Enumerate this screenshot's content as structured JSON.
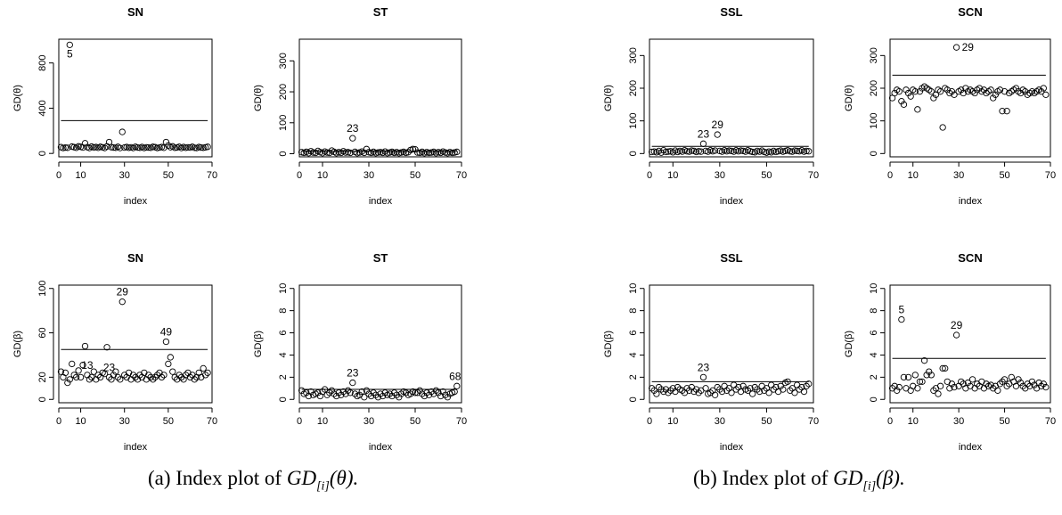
{
  "captions": [
    {
      "prefix": "(a) Index plot of",
      "symbol": "GD",
      "sub": "[i]",
      "arg": "(θ)."
    },
    {
      "prefix": "(b) Index plot of",
      "symbol": "GD",
      "sub": "[i]",
      "arg": "(β)."
    }
  ],
  "chart_data": [
    {
      "type": "scatter",
      "panel": "a",
      "title": "SN",
      "xlabel": "index",
      "ylabel": "GD(θ)",
      "xlim": [
        0,
        70
      ],
      "ylim": [
        -30,
        1010
      ],
      "xticks": [
        0,
        10,
        30,
        50,
        70
      ],
      "yticks": [
        0,
        400,
        800
      ],
      "x": [
        1,
        2,
        3,
        4,
        5,
        6,
        7,
        8,
        9,
        10,
        11,
        12,
        13,
        14,
        15,
        16,
        17,
        18,
        19,
        20,
        21,
        22,
        23,
        24,
        25,
        26,
        27,
        28,
        29,
        30,
        31,
        32,
        33,
        34,
        35,
        36,
        37,
        38,
        39,
        40,
        41,
        42,
        43,
        44,
        45,
        46,
        47,
        48,
        49,
        50,
        51,
        52,
        53,
        54,
        55,
        56,
        57,
        58,
        59,
        60,
        61,
        62,
        63,
        64,
        65,
        66,
        67,
        68
      ],
      "y": [
        55,
        48,
        52,
        50,
        960,
        60,
        55,
        50,
        62,
        58,
        52,
        90,
        55,
        48,
        60,
        52,
        56,
        50,
        58,
        54,
        48,
        62,
        100,
        55,
        52,
        50,
        58,
        48,
        190,
        52,
        56,
        50,
        54,
        48,
        58,
        52,
        50,
        56,
        48,
        54,
        52,
        50,
        58,
        55,
        48,
        52,
        56,
        50,
        100,
        70,
        55,
        62,
        50,
        52,
        58,
        48,
        56,
        50,
        54,
        52,
        58,
        50,
        48,
        56,
        52,
        50,
        54,
        58
      ],
      "hline": 290,
      "labels": [
        {
          "index": 5,
          "text": "5"
        }
      ]
    },
    {
      "type": "scatter",
      "panel": "a",
      "title": "ST",
      "xlabel": "index",
      "ylabel": "GD(θ)",
      "xlim": [
        0,
        70
      ],
      "ylim": [
        -10,
        370
      ],
      "xticks": [
        0,
        10,
        30,
        50,
        70
      ],
      "yticks": [
        0,
        100,
        200,
        300
      ],
      "x": [
        1,
        2,
        3,
        4,
        5,
        6,
        7,
        8,
        9,
        10,
        11,
        12,
        13,
        14,
        15,
        16,
        17,
        18,
        19,
        20,
        21,
        22,
        23,
        24,
        25,
        26,
        27,
        28,
        29,
        30,
        31,
        32,
        33,
        34,
        35,
        36,
        37,
        38,
        39,
        40,
        41,
        42,
        43,
        44,
        45,
        46,
        47,
        48,
        49,
        50,
        51,
        52,
        53,
        54,
        55,
        56,
        57,
        58,
        59,
        60,
        61,
        62,
        63,
        64,
        65,
        66,
        67,
        68
      ],
      "y": [
        5,
        3,
        6,
        2,
        8,
        4,
        3,
        9,
        5,
        2,
        7,
        4,
        3,
        10,
        6,
        2,
        5,
        3,
        8,
        4,
        5,
        3,
        50,
        6,
        2,
        4,
        7,
        3,
        15,
        5,
        3,
        6,
        2,
        4,
        5,
        3,
        7,
        2,
        4,
        6,
        3,
        5,
        2,
        4,
        6,
        3,
        5,
        12,
        15,
        14,
        4,
        3,
        6,
        2,
        5,
        3,
        4,
        6,
        2,
        5,
        3,
        7,
        4,
        2,
        5,
        3,
        4,
        6
      ],
      "hline": 8,
      "labels": [
        {
          "index": 23,
          "text": "23"
        }
      ]
    },
    {
      "type": "scatter",
      "panel": "a",
      "title": "SSL",
      "xlabel": "index",
      "ylabel": "GD(θ)",
      "xlim": [
        0,
        70
      ],
      "ylim": [
        -10,
        350
      ],
      "xticks": [
        0,
        10,
        30,
        50,
        70
      ],
      "yticks": [
        0,
        100,
        200,
        300
      ],
      "x": [
        1,
        2,
        3,
        4,
        5,
        6,
        7,
        8,
        9,
        10,
        11,
        12,
        13,
        14,
        15,
        16,
        17,
        18,
        19,
        20,
        21,
        22,
        23,
        24,
        25,
        26,
        27,
        28,
        29,
        30,
        31,
        32,
        33,
        34,
        35,
        36,
        37,
        38,
        39,
        40,
        41,
        42,
        43,
        44,
        45,
        46,
        47,
        48,
        49,
        50,
        51,
        52,
        53,
        54,
        55,
        56,
        57,
        58,
        59,
        60,
        61,
        62,
        63,
        64,
        65,
        66,
        67,
        68
      ],
      "y": [
        5,
        6,
        4,
        8,
        3,
        10,
        5,
        6,
        7,
        4,
        9,
        5,
        8,
        6,
        10,
        7,
        6,
        9,
        8,
        5,
        7,
        6,
        30,
        8,
        6,
        10,
        7,
        9,
        58,
        8,
        6,
        10,
        7,
        9,
        8,
        6,
        10,
        7,
        9,
        8,
        6,
        10,
        7,
        5,
        4,
        8,
        6,
        9,
        5,
        3,
        6,
        4,
        8,
        5,
        7,
        9,
        6,
        8,
        10,
        7,
        6,
        9,
        8,
        7,
        10,
        6,
        8,
        7
      ],
      "hline": 22,
      "labels": [
        {
          "index": 23,
          "text": "23"
        },
        {
          "index": 29,
          "text": "29"
        }
      ]
    },
    {
      "type": "scatter",
      "panel": "a",
      "title": "SCN",
      "xlabel": "index",
      "ylabel": "GD(θ)",
      "xlim": [
        0,
        70
      ],
      "ylim": [
        -10,
        350
      ],
      "xticks": [
        0,
        10,
        30,
        50,
        70
      ],
      "yticks": [
        0,
        100,
        200,
        300
      ],
      "x": [
        1,
        2,
        3,
        4,
        5,
        6,
        7,
        8,
        9,
        10,
        11,
        12,
        13,
        14,
        15,
        16,
        17,
        18,
        19,
        20,
        21,
        22,
        23,
        24,
        25,
        26,
        27,
        28,
        29,
        30,
        31,
        32,
        33,
        34,
        35,
        36,
        37,
        38,
        39,
        40,
        41,
        42,
        43,
        44,
        45,
        46,
        47,
        48,
        49,
        50,
        51,
        52,
        53,
        54,
        55,
        56,
        57,
        58,
        59,
        60,
        61,
        62,
        63,
        64,
        65,
        66,
        67,
        68
      ],
      "y": [
        170,
        185,
        195,
        190,
        160,
        150,
        195,
        185,
        175,
        195,
        190,
        135,
        190,
        200,
        205,
        200,
        195,
        190,
        170,
        180,
        195,
        190,
        80,
        200,
        195,
        185,
        190,
        180,
        325,
        190,
        195,
        185,
        200,
        190,
        195,
        190,
        185,
        195,
        200,
        190,
        195,
        185,
        190,
        195,
        170,
        180,
        190,
        195,
        130,
        190,
        130,
        185,
        190,
        195,
        200,
        190,
        185,
        195,
        190,
        180,
        185,
        190,
        185,
        190,
        195,
        190,
        200,
        180
      ],
      "hline": 240,
      "labels": [
        {
          "index": 29,
          "text": "29"
        }
      ]
    },
    {
      "type": "scatter",
      "panel": "b",
      "title": "SN",
      "xlabel": "index",
      "ylabel": "GD(β)",
      "xlim": [
        0,
        70
      ],
      "ylim": [
        -3,
        103
      ],
      "xticks": [
        0,
        10,
        30,
        50,
        70
      ],
      "yticks": [
        0,
        20,
        60,
        100
      ],
      "x": [
        1,
        2,
        3,
        4,
        5,
        6,
        7,
        8,
        9,
        10,
        11,
        12,
        13,
        14,
        15,
        16,
        17,
        18,
        19,
        20,
        21,
        22,
        23,
        24,
        25,
        26,
        27,
        28,
        29,
        30,
        31,
        32,
        33,
        34,
        35,
        36,
        37,
        38,
        39,
        40,
        41,
        42,
        43,
        44,
        45,
        46,
        47,
        48,
        49,
        50,
        51,
        52,
        53,
        54,
        55,
        56,
        57,
        58,
        59,
        60,
        61,
        62,
        63,
        64,
        65,
        66,
        67,
        68
      ],
      "y": [
        25,
        20,
        24,
        15,
        18,
        32,
        22,
        20,
        26,
        20,
        31,
        48,
        22,
        18,
        20,
        25,
        18,
        22,
        20,
        24,
        23,
        47,
        20,
        18,
        22,
        25,
        20,
        18,
        88,
        22,
        20,
        24,
        18,
        22,
        20,
        18,
        22,
        20,
        24,
        18,
        22,
        20,
        18,
        20,
        22,
        24,
        20,
        22,
        52,
        32,
        38,
        25,
        20,
        18,
        22,
        20,
        18,
        22,
        24,
        20,
        22,
        18,
        20,
        24,
        20,
        28,
        22,
        24
      ],
      "hline": 45,
      "labels": [
        {
          "index": 13,
          "text": "13"
        },
        {
          "index": 23,
          "text": "23"
        },
        {
          "index": 29,
          "text": "29"
        },
        {
          "index": 49,
          "text": "49"
        }
      ]
    },
    {
      "type": "scatter",
      "panel": "b",
      "title": "ST",
      "xlabel": "index",
      "ylabel": "GD(β)",
      "xlim": [
        0,
        70
      ],
      "ylim": [
        -0.3,
        10.3
      ],
      "xticks": [
        0,
        10,
        30,
        50,
        70
      ],
      "yticks": [
        0,
        2,
        4,
        6,
        8,
        10
      ],
      "x": [
        1,
        2,
        3,
        4,
        5,
        6,
        7,
        8,
        9,
        10,
        11,
        12,
        13,
        14,
        15,
        16,
        17,
        18,
        19,
        20,
        21,
        22,
        23,
        24,
        25,
        26,
        27,
        28,
        29,
        30,
        31,
        32,
        33,
        34,
        35,
        36,
        37,
        38,
        39,
        40,
        41,
        42,
        43,
        44,
        45,
        46,
        47,
        48,
        49,
        50,
        51,
        52,
        53,
        54,
        55,
        56,
        57,
        58,
        59,
        60,
        61,
        62,
        63,
        64,
        65,
        66,
        67,
        68
      ],
      "y": [
        0.8,
        0.5,
        0.6,
        0.3,
        0.7,
        0.4,
        0.5,
        0.6,
        0.3,
        0.7,
        0.9,
        0.4,
        0.6,
        0.8,
        0.5,
        0.3,
        0.6,
        0.4,
        0.7,
        0.5,
        0.8,
        0.6,
        1.5,
        0.5,
        0.3,
        0.4,
        0.7,
        0.2,
        0.8,
        0.5,
        0.3,
        0.6,
        0.4,
        0.2,
        0.5,
        0.3,
        0.6,
        0.4,
        0.5,
        0.3,
        0.6,
        0.4,
        0.2,
        0.5,
        0.7,
        0.6,
        0.4,
        0.5,
        0.7,
        0.6,
        0.6,
        0.8,
        0.5,
        0.3,
        0.6,
        0.4,
        0.7,
        0.5,
        0.8,
        0.6,
        0.3,
        0.7,
        0.4,
        0.2,
        0.5,
        0.6,
        0.7,
        1.2
      ],
      "hline": 0.9,
      "labels": [
        {
          "index": 23,
          "text": "23"
        },
        {
          "index": 68,
          "text": "68"
        }
      ]
    },
    {
      "type": "scatter",
      "panel": "b",
      "title": "SSL",
      "xlabel": "index",
      "ylabel": "GD(β)",
      "xlim": [
        0,
        70
      ],
      "ylim": [
        -0.3,
        10.3
      ],
      "xticks": [
        0,
        10,
        30,
        50,
        70
      ],
      "yticks": [
        0,
        2,
        4,
        6,
        8,
        10
      ],
      "x": [
        1,
        2,
        3,
        4,
        5,
        6,
        7,
        8,
        9,
        10,
        11,
        12,
        13,
        14,
        15,
        16,
        17,
        18,
        19,
        20,
        21,
        22,
        23,
        24,
        25,
        26,
        27,
        28,
        29,
        30,
        31,
        32,
        33,
        34,
        35,
        36,
        37,
        38,
        39,
        40,
        41,
        42,
        43,
        44,
        45,
        46,
        47,
        48,
        49,
        50,
        51,
        52,
        53,
        54,
        55,
        56,
        57,
        58,
        59,
        60,
        61,
        62,
        63,
        64,
        65,
        66,
        67,
        68
      ],
      "y": [
        1.0,
        0.8,
        0.5,
        1.1,
        0.9,
        0.7,
        0.9,
        0.6,
        0.8,
        1.0,
        0.7,
        1.1,
        0.9,
        0.8,
        0.6,
        1.0,
        0.8,
        1.1,
        0.7,
        0.9,
        0.6,
        0.8,
        2.0,
        1.0,
        0.5,
        0.6,
        0.8,
        0.4,
        1.1,
        0.9,
        0.7,
        1.2,
        0.8,
        1.0,
        0.6,
        1.3,
        0.9,
        1.1,
        0.7,
        1.2,
        0.9,
        0.8,
        1.0,
        0.5,
        1.1,
        0.9,
        0.7,
        1.2,
        0.8,
        1.0,
        0.6,
        1.3,
        0.9,
        1.1,
        0.7,
        1.2,
        0.9,
        1.5,
        1.6,
        0.8,
        1.0,
        0.6,
        1.3,
        0.9,
        1.1,
        0.7,
        1.2,
        1.4
      ],
      "hline": 1.6,
      "labels": [
        {
          "index": 23,
          "text": "23"
        }
      ]
    },
    {
      "type": "scatter",
      "panel": "b",
      "title": "SCN",
      "xlabel": "index",
      "ylabel": "GD(β)",
      "xlim": [
        0,
        70
      ],
      "ylim": [
        -0.3,
        10.3
      ],
      "xticks": [
        0,
        10,
        30,
        50,
        70
      ],
      "yticks": [
        0,
        2,
        4,
        6,
        8,
        10
      ],
      "x": [
        1,
        2,
        3,
        4,
        5,
        6,
        7,
        8,
        9,
        10,
        11,
        12,
        13,
        14,
        15,
        16,
        17,
        18,
        19,
        20,
        21,
        22,
        23,
        24,
        25,
        26,
        27,
        28,
        29,
        30,
        31,
        32,
        33,
        34,
        35,
        36,
        37,
        38,
        39,
        40,
        41,
        42,
        43,
        44,
        45,
        46,
        47,
        48,
        49,
        50,
        51,
        52,
        53,
        54,
        55,
        56,
        57,
        58,
        59,
        60,
        61,
        62,
        63,
        64,
        65,
        66,
        67,
        68
      ],
      "y": [
        1.0,
        1.2,
        0.8,
        1.1,
        7.2,
        2.0,
        1.0,
        2.0,
        0.8,
        1.2,
        2.2,
        1.0,
        1.6,
        1.6,
        3.5,
        2.2,
        2.5,
        2.2,
        0.8,
        1.0,
        0.5,
        1.2,
        2.8,
        2.8,
        1.6,
        1.0,
        1.4,
        1.1,
        5.8,
        1.2,
        1.6,
        1.4,
        1.0,
        1.5,
        1.2,
        1.8,
        1.0,
        1.4,
        1.2,
        1.6,
        1.0,
        1.4,
        1.2,
        1.3,
        1.0,
        1.2,
        0.8,
        1.4,
        1.6,
        1.8,
        1.2,
        1.4,
        2.0,
        1.6,
        1.2,
        1.8,
        1.5,
        1.2,
        1.0,
        1.4,
        1.2,
        1.6,
        1.3,
        1.0,
        1.5,
        1.2,
        1.4,
        1.1
      ],
      "hline": 3.7,
      "labels": [
        {
          "index": 5,
          "text": "5"
        },
        {
          "index": 29,
          "text": "29"
        }
      ]
    }
  ]
}
